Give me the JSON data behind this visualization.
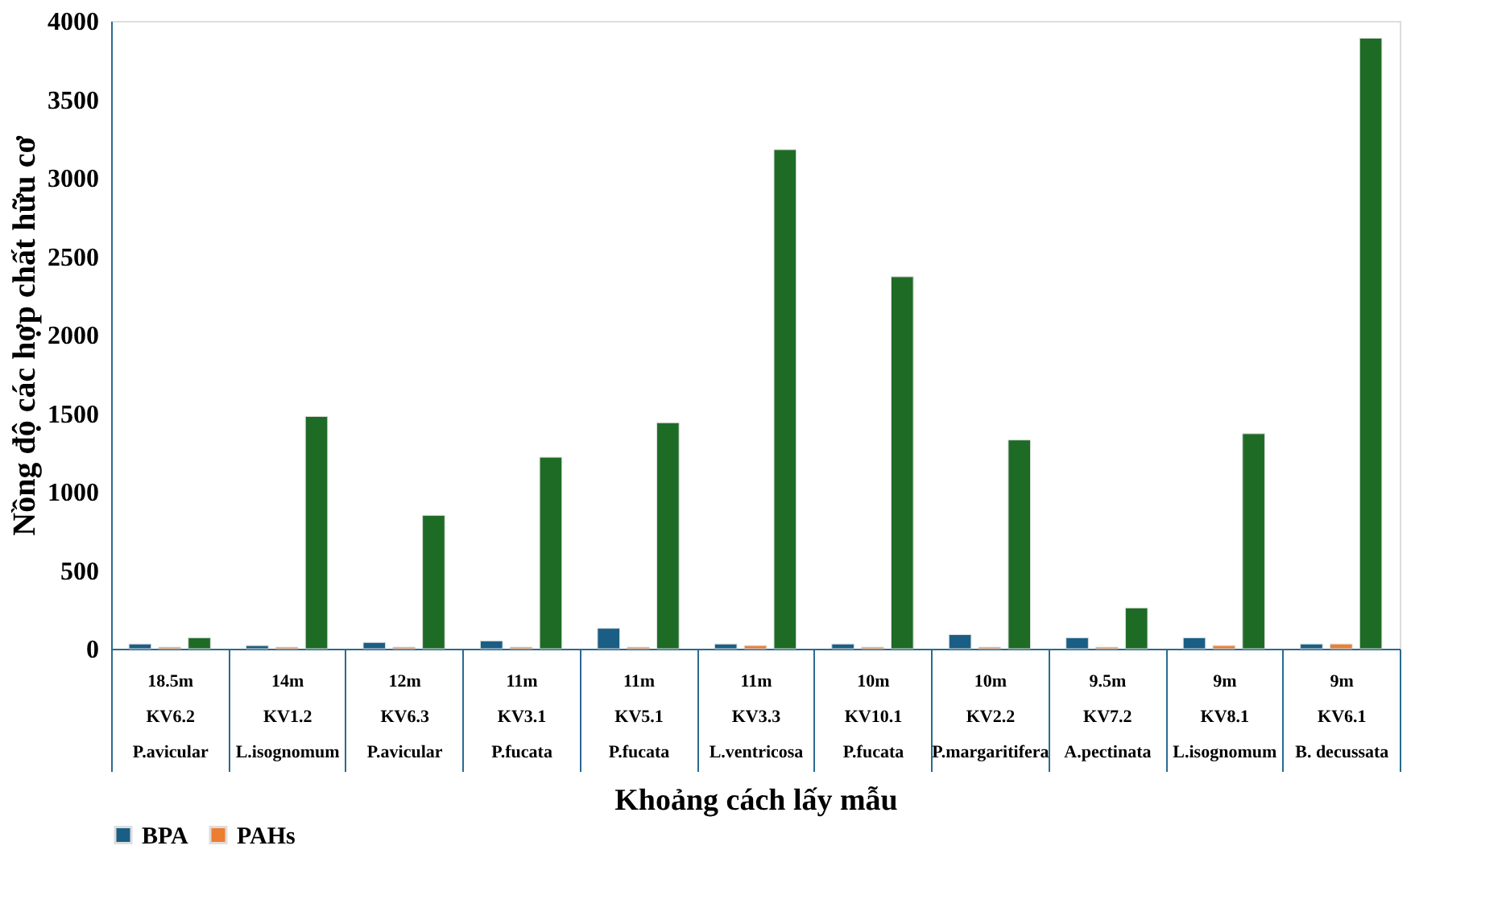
{
  "chart_data": {
    "type": "bar",
    "xlabel": "Khoảng cách lấy mẫu",
    "ylabel": "Nồng độ các hợp chất hữu cơ",
    "categories": [
      "18.5m\nKV6.2\nP.avicular",
      "14m\nKV1.2\nL.isognomum",
      "12m\nKV6.3\nP.avicular",
      "11m\nKV3.1\nP.fucata",
      "11m\nKV5.1\nP.fucata",
      "11m\nKV3.3\nL.ventricosa",
      "10m\nKV10.1\nP.fucata",
      "10m\nKV2.2\nP.margaritifera",
      "9.5m\nKV7.2\nA.pectinata",
      "9m\nKV8.1\nL.isognomum",
      "9m\nKV6.1\nB. decussata"
    ],
    "series": [
      {
        "name": "BPA",
        "color": "#1a5e85",
        "values": [
          30,
          20,
          40,
          50,
          130,
          30,
          30,
          90,
          70,
          70,
          30
        ]
      },
      {
        "name": "PAHs",
        "color": "#ed7d31",
        "values": [
          10,
          10,
          10,
          10,
          10,
          20,
          10,
          10,
          10,
          20,
          30
        ]
      },
      {
        "color": "#1e6b25",
        "values": [
          70,
          1480,
          850,
          1220,
          1440,
          3180,
          2370,
          1330,
          260,
          1370,
          3890
        ]
      }
    ],
    "ylim": [
      0,
      4000
    ],
    "yticks": [
      0,
      500,
      1000,
      1500,
      2000,
      2500,
      3000,
      3500,
      4000
    ],
    "grid": false,
    "legend": "bottom"
  }
}
